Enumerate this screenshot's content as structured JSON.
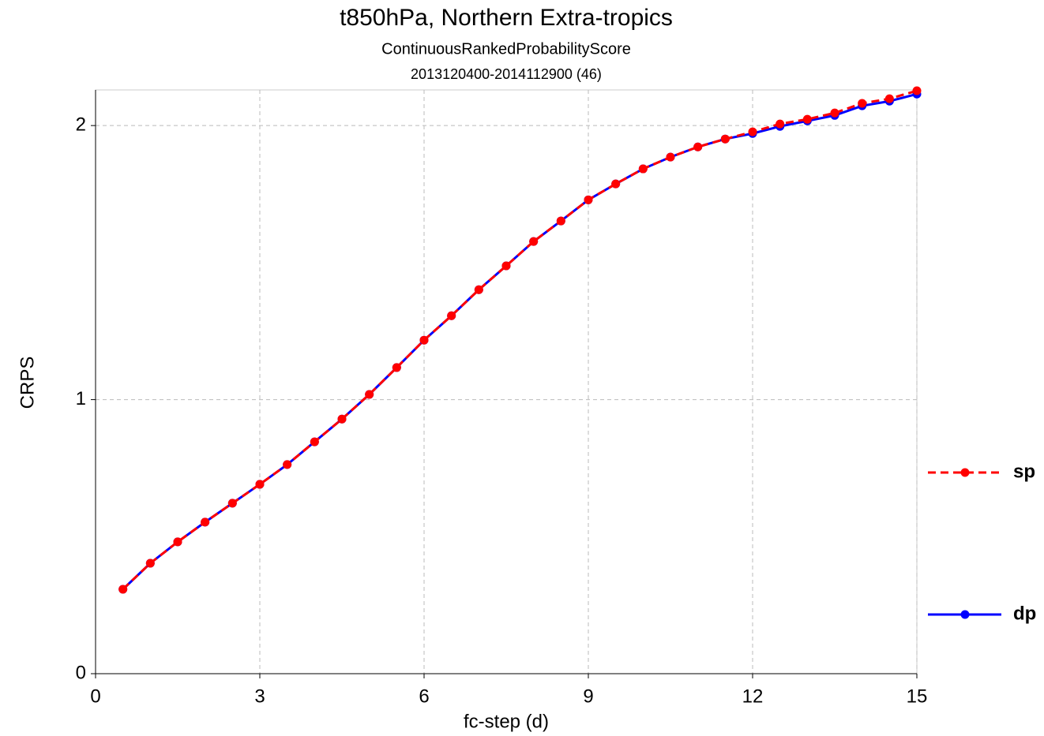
{
  "chart_data": {
    "type": "line",
    "title": "t850hPa,  Northern Extra-tropics",
    "subtitle": "ContinuousRankedProbabilityScore",
    "period": "2013120400-2014112900 (46)",
    "xlabel": "fc-step (d)",
    "ylabel": "CRPS",
    "x": [
      0.5,
      1,
      1.5,
      2,
      2.5,
      3,
      3.5,
      4,
      4.5,
      5,
      5.5,
      6,
      6.5,
      7,
      7.5,
      8,
      8.5,
      9,
      9.5,
      10,
      10.5,
      11,
      11.5,
      12,
      12.5,
      13,
      13.5,
      14,
      14.5,
      15
    ],
    "series": [
      {
        "name": "sp",
        "color": "#ff0000",
        "linestyle": "dashed",
        "values": [
          0.308,
          0.403,
          0.481,
          0.553,
          0.622,
          0.691,
          0.763,
          0.846,
          0.929,
          1.019,
          1.117,
          1.217,
          1.306,
          1.401,
          1.488,
          1.577,
          1.652,
          1.729,
          1.787,
          1.842,
          1.885,
          1.922,
          1.951,
          1.977,
          2.006,
          2.023,
          2.046,
          2.081,
          2.098,
          2.127
        ]
      },
      {
        "name": "dp",
        "color": "#0000ff",
        "linestyle": "solid",
        "values": [
          0.308,
          0.403,
          0.481,
          0.553,
          0.622,
          0.691,
          0.763,
          0.846,
          0.929,
          1.019,
          1.117,
          1.217,
          1.306,
          1.401,
          1.488,
          1.577,
          1.652,
          1.729,
          1.787,
          1.842,
          1.885,
          1.922,
          1.951,
          1.971,
          1.997,
          2.017,
          2.037,
          2.072,
          2.089,
          2.115
        ]
      }
    ],
    "xlim": [
      0,
      15
    ],
    "xticks": [
      0,
      3,
      6,
      9,
      12,
      15
    ],
    "ylim": [
      0,
      2.13
    ],
    "yticks": [
      0,
      1,
      2
    ],
    "grid": true,
    "legend": "right"
  }
}
